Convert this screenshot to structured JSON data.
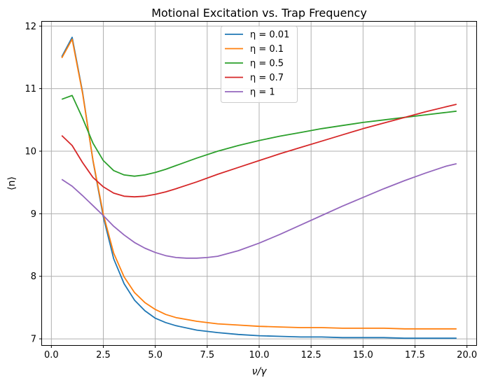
{
  "chart_data": {
    "type": "line",
    "title": "Motional Excitation vs. Trap Frequency",
    "xlabel": "ν/γ",
    "ylabel": "⟨n⟩",
    "xlim": [
      -0.45,
      20.45
    ],
    "ylim": [
      6.9,
      12.07
    ],
    "xticks": [
      0.0,
      2.5,
      5.0,
      7.5,
      10.0,
      12.5,
      15.0,
      17.5,
      20.0
    ],
    "xtick_labels": [
      "0.0",
      "2.5",
      "5.0",
      "7.5",
      "10.0",
      "12.5",
      "15.0",
      "17.5",
      "20.0"
    ],
    "yticks": [
      7,
      8,
      9,
      10,
      11,
      12
    ],
    "ytick_labels": [
      "7",
      "8",
      "9",
      "10",
      "11",
      "12"
    ],
    "grid": true,
    "legend_position": "top-center",
    "series": [
      {
        "name": "η = 0.01",
        "color": "#1f77b4",
        "x": [
          0.5,
          1.0,
          1.5,
          2.0,
          2.5,
          3.0,
          3.5,
          4.0,
          4.5,
          5.0,
          5.5,
          6.0,
          7.0,
          8.0,
          9.0,
          10.0,
          11.0,
          12.0,
          13.0,
          14.0,
          15.0,
          16.0,
          17.0,
          18.0,
          19.0,
          19.5
        ],
        "values": [
          11.51,
          11.82,
          10.95,
          9.85,
          8.95,
          8.28,
          7.88,
          7.62,
          7.45,
          7.33,
          7.26,
          7.21,
          7.14,
          7.1,
          7.07,
          7.05,
          7.04,
          7.03,
          7.03,
          7.02,
          7.02,
          7.02,
          7.01,
          7.01,
          7.01,
          7.01
        ]
      },
      {
        "name": "η = 0.1",
        "color": "#ff7f0e",
        "x": [
          0.5,
          1.0,
          1.5,
          2.0,
          2.5,
          3.0,
          3.5,
          4.0,
          4.5,
          5.0,
          5.5,
          6.0,
          7.0,
          8.0,
          9.0,
          10.0,
          11.0,
          12.0,
          13.0,
          14.0,
          15.0,
          16.0,
          17.0,
          18.0,
          19.0,
          19.5
        ],
        "values": [
          11.49,
          11.79,
          10.93,
          9.86,
          8.99,
          8.37,
          7.99,
          7.74,
          7.58,
          7.47,
          7.39,
          7.34,
          7.28,
          7.24,
          7.22,
          7.2,
          7.19,
          7.18,
          7.18,
          7.17,
          7.17,
          7.17,
          7.16,
          7.16,
          7.16,
          7.16
        ]
      },
      {
        "name": "η = 0.5",
        "color": "#2ca02c",
        "x": [
          0.5,
          1.0,
          1.5,
          2.0,
          2.5,
          3.0,
          3.5,
          4.0,
          4.5,
          5.0,
          5.5,
          6.0,
          7.0,
          8.0,
          9.0,
          10.0,
          11.0,
          12.0,
          13.0,
          14.0,
          15.0,
          16.0,
          17.0,
          18.0,
          19.0,
          19.5
        ],
        "values": [
          10.83,
          10.89,
          10.53,
          10.13,
          9.85,
          9.69,
          9.62,
          9.6,
          9.62,
          9.66,
          9.71,
          9.77,
          9.89,
          10.0,
          10.09,
          10.17,
          10.24,
          10.3,
          10.36,
          10.41,
          10.46,
          10.5,
          10.54,
          10.58,
          10.62,
          10.64
        ]
      },
      {
        "name": "η = 0.7",
        "color": "#d62728",
        "x": [
          0.5,
          1.0,
          1.5,
          2.0,
          2.5,
          3.0,
          3.5,
          4.0,
          4.5,
          5.0,
          5.5,
          6.0,
          7.0,
          8.0,
          9.0,
          10.0,
          11.0,
          12.0,
          13.0,
          14.0,
          15.0,
          16.0,
          17.0,
          18.0,
          19.0,
          19.5
        ],
        "values": [
          10.25,
          10.09,
          9.82,
          9.58,
          9.43,
          9.33,
          9.28,
          9.27,
          9.28,
          9.31,
          9.35,
          9.4,
          9.51,
          9.63,
          9.74,
          9.85,
          9.96,
          10.06,
          10.16,
          10.26,
          10.36,
          10.45,
          10.54,
          10.63,
          10.71,
          10.75
        ]
      },
      {
        "name": "η = 1",
        "color": "#9467bd",
        "x": [
          0.5,
          1.0,
          1.5,
          2.0,
          2.5,
          3.0,
          3.5,
          4.0,
          4.5,
          5.0,
          5.5,
          6.0,
          6.5,
          7.0,
          7.5,
          8.0,
          9.0,
          10.0,
          11.0,
          12.0,
          13.0,
          14.0,
          15.0,
          16.0,
          17.0,
          18.0,
          19.0,
          19.5
        ],
        "values": [
          9.55,
          9.44,
          9.29,
          9.13,
          8.97,
          8.8,
          8.66,
          8.54,
          8.45,
          8.38,
          8.33,
          8.3,
          8.29,
          8.29,
          8.3,
          8.32,
          8.41,
          8.53,
          8.67,
          8.82,
          8.97,
          9.12,
          9.26,
          9.4,
          9.53,
          9.65,
          9.76,
          9.8
        ]
      }
    ]
  }
}
